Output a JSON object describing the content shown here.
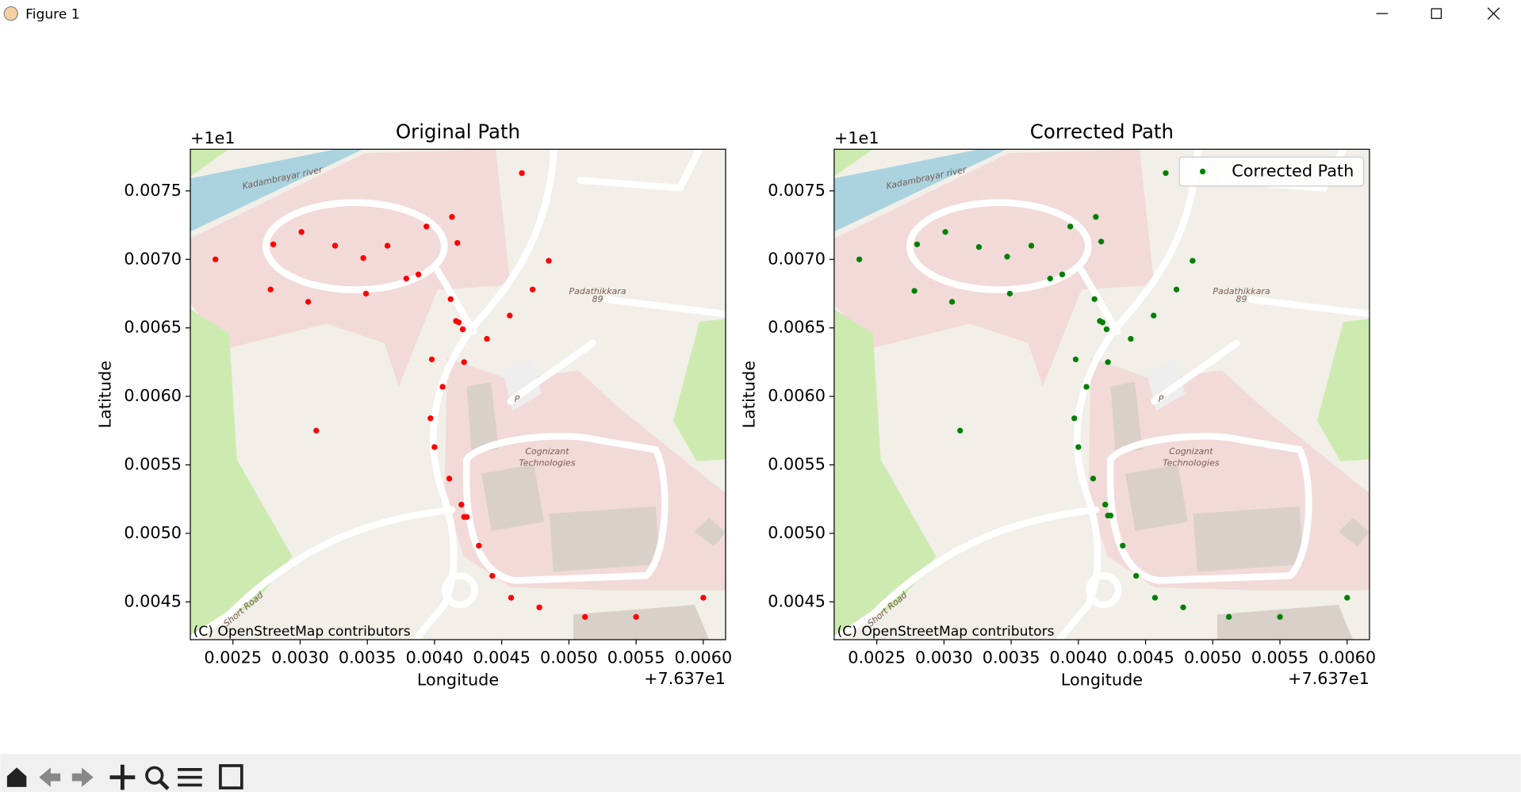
{
  "window": {
    "title": "Figure 1"
  },
  "chart_data": [
    {
      "type": "scatter",
      "title": "Original Path",
      "x_label": "Longitude",
      "y_label": "Latitude",
      "x_offset_label": "+7.637e1",
      "y_offset_label": "+1e1",
      "attribution": "(C) OpenStreetMap contributors",
      "map_labels": [
        "Kadambrayar river",
        "Padathikkara",
        "89",
        "Cognizant",
        "Technologies",
        "P",
        "Short Road"
      ],
      "xlim": [
        0.002183,
        0.006166
      ],
      "ylim": [
        0.004224,
        0.007804
      ],
      "xticks": [
        {
          "value": 0.0025,
          "label": "0.0025"
        },
        {
          "value": 0.003,
          "label": "0.0030"
        },
        {
          "value": 0.0035,
          "label": "0.0035"
        },
        {
          "value": 0.004,
          "label": "0.0040"
        },
        {
          "value": 0.0045,
          "label": "0.0045"
        },
        {
          "value": 0.005,
          "label": "0.0050"
        },
        {
          "value": 0.0055,
          "label": "0.0055"
        },
        {
          "value": 0.006,
          "label": "0.0060"
        }
      ],
      "yticks": [
        {
          "value": 0.0045,
          "label": "0.0045"
        },
        {
          "value": 0.005,
          "label": "0.0050"
        },
        {
          "value": 0.0055,
          "label": "0.0055"
        },
        {
          "value": 0.006,
          "label": "0.0060"
        },
        {
          "value": 0.0065,
          "label": "0.0065"
        },
        {
          "value": 0.007,
          "label": "0.0070"
        },
        {
          "value": 0.0075,
          "label": "0.0075"
        }
      ],
      "color": "red",
      "x": [
        0.00237,
        0.0028,
        0.00278,
        0.00301,
        0.00306,
        0.00326,
        0.00347,
        0.00349,
        0.00365,
        0.00379,
        0.00388,
        0.00394,
        0.00413,
        0.00417,
        0.00412,
        0.00416,
        0.00418,
        0.00421,
        0.00439,
        0.00456,
        0.00473,
        0.00485,
        0.00465,
        0.00398,
        0.00422,
        0.00406,
        0.00397,
        0.004,
        0.00312,
        0.00411,
        0.0042,
        0.00422,
        0.00424,
        0.00433,
        0.00443,
        0.00457,
        0.00478,
        0.00512,
        0.0055,
        0.006
      ],
      "values": [
        0.007,
        0.00711,
        0.00678,
        0.0072,
        0.00669,
        0.0071,
        0.00701,
        0.00675,
        0.0071,
        0.00686,
        0.00689,
        0.00724,
        0.00731,
        0.00712,
        0.00671,
        0.00655,
        0.00654,
        0.00649,
        0.00642,
        0.00659,
        0.00678,
        0.00699,
        0.00763,
        0.00627,
        0.00625,
        0.00607,
        0.00584,
        0.00563,
        0.00575,
        0.0054,
        0.00521,
        0.00512,
        0.00512,
        0.00491,
        0.00469,
        0.00453,
        0.00446,
        0.00439,
        0.00439,
        0.00453
      ]
    },
    {
      "type": "scatter",
      "title": "Corrected Path",
      "x_label": "Longitude",
      "y_label": "Latitude",
      "x_offset_label": "+7.637e1",
      "y_offset_label": "+1e1",
      "attribution": "(C) OpenStreetMap contributors",
      "map_labels": [
        "Kadambrayar river",
        "Padathikkara",
        "89",
        "Cognizant",
        "Technologies",
        "P",
        "Short Road"
      ],
      "xlim": [
        0.002183,
        0.006166
      ],
      "ylim": [
        0.004224,
        0.007804
      ],
      "xticks": [
        {
          "value": 0.0025,
          "label": "0.0025"
        },
        {
          "value": 0.003,
          "label": "0.0030"
        },
        {
          "value": 0.0035,
          "label": "0.0035"
        },
        {
          "value": 0.004,
          "label": "0.0040"
        },
        {
          "value": 0.0045,
          "label": "0.0045"
        },
        {
          "value": 0.005,
          "label": "0.0050"
        },
        {
          "value": 0.0055,
          "label": "0.0055"
        },
        {
          "value": 0.006,
          "label": "0.0060"
        }
      ],
      "yticks": [
        {
          "value": 0.0045,
          "label": "0.0045"
        },
        {
          "value": 0.005,
          "label": "0.0050"
        },
        {
          "value": 0.0055,
          "label": "0.0055"
        },
        {
          "value": 0.006,
          "label": "0.0060"
        },
        {
          "value": 0.0065,
          "label": "0.0065"
        },
        {
          "value": 0.007,
          "label": "0.0070"
        },
        {
          "value": 0.0075,
          "label": "0.0075"
        }
      ],
      "legend": "upper right",
      "x": [
        0.00237,
        0.0028,
        0.00278,
        0.00301,
        0.00306,
        0.00326,
        0.00347,
        0.00349,
        0.00365,
        0.00379,
        0.00388,
        0.00394,
        0.00413,
        0.00417,
        0.00412,
        0.00416,
        0.00418,
        0.00421,
        0.00439,
        0.00456,
        0.00473,
        0.00485,
        0.00465,
        0.00398,
        0.00422,
        0.00406,
        0.00397,
        0.004,
        0.00312,
        0.00411,
        0.0042,
        0.00422,
        0.00424,
        0.00433,
        0.00443,
        0.00457,
        0.00478,
        0.00512,
        0.0055,
        0.006
      ],
      "series": [
        {
          "name": "Corrected Path",
          "color": "green",
          "values": [
            0.007,
            0.00711,
            0.00677,
            0.0072,
            0.00669,
            0.00709,
            0.00702,
            0.00675,
            0.0071,
            0.00686,
            0.00689,
            0.00724,
            0.00731,
            0.00713,
            0.00671,
            0.00655,
            0.00654,
            0.00649,
            0.00642,
            0.00659,
            0.00678,
            0.00699,
            0.00763,
            0.00627,
            0.00625,
            0.00607,
            0.00584,
            0.00563,
            0.00575,
            0.0054,
            0.00521,
            0.00513,
            0.00513,
            0.00491,
            0.00469,
            0.00453,
            0.00446,
            0.00439,
            0.00439,
            0.00453
          ]
        }
      ]
    }
  ]
}
